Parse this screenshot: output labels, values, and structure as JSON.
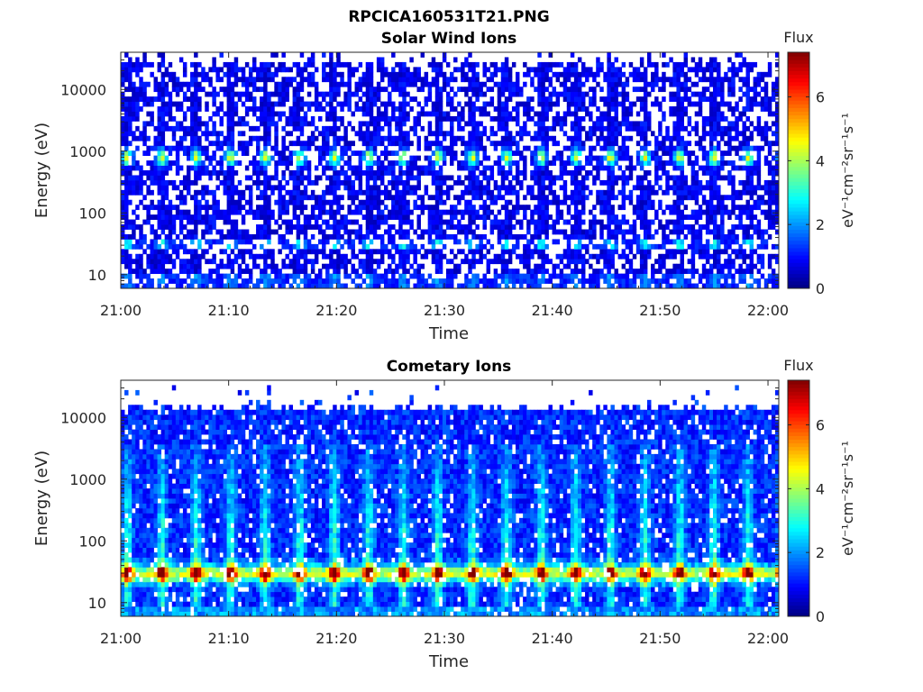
{
  "figure": {
    "filename_title": "RPCICA160531T21.PNG"
  },
  "chart_data": [
    {
      "type": "heatmap",
      "title": "Solar Wind Ions",
      "xlabel": "Time",
      "ylabel": "Energy (eV)",
      "x_ticks": [
        "21:00",
        "21:10",
        "21:20",
        "21:30",
        "21:40",
        "21:50",
        "22:00"
      ],
      "xlim": [
        "21:00",
        "22:01"
      ],
      "y_scale": "log",
      "y_ticks": [
        "10",
        "100",
        "1000",
        "10000"
      ],
      "ylim": [
        6,
        40000
      ],
      "colorbar": {
        "title": "Flux",
        "label": "eV⁻¹cm⁻²sr⁻¹s⁻¹",
        "ticks": [
          "0",
          "2",
          "4",
          "6"
        ],
        "range": [
          0,
          7.4
        ],
        "colormap": "jet"
      },
      "pattern": {
        "description": "Sparse background across all energies; periodic bright bands near 700-1000 eV and near 30 eV approximately every 3.2 minutes"
      },
      "peak_energy_ev": 800,
      "peak_flux": 3.8,
      "low_band_energy_ev": 30,
      "low_band_flux": 2.9,
      "sweep_period_min": 3.2,
      "sweep_phase_min": 3.0,
      "background_flux": 0.8
    },
    {
      "type": "heatmap",
      "title": "Cometary Ions",
      "xlabel": "Time",
      "ylabel": "Energy (eV)",
      "x_ticks": [
        "21:00",
        "21:10",
        "21:20",
        "21:30",
        "21:40",
        "21:50",
        "22:00"
      ],
      "xlim": [
        "21:00",
        "22:01"
      ],
      "y_scale": "log",
      "y_ticks": [
        "10",
        "100",
        "1000",
        "10000"
      ],
      "ylim": [
        6,
        40000
      ],
      "colorbar": {
        "title": "Flux",
        "label": "eV⁻¹cm⁻²sr⁻¹s⁻¹",
        "ticks": [
          "0",
          "2",
          "4",
          "6"
        ],
        "range": [
          0,
          7.4
        ],
        "colormap": "jet"
      },
      "pattern": {
        "description": "Strong persistent band near 30 eV (flux up to ~6.5) with periodic vertical streaks extending to several keV every ~3.2 minutes"
      },
      "peak_energy_ev": 30,
      "peak_flux": 6.3,
      "streak_top_ev": 3000,
      "sweep_period_min": 3.2,
      "sweep_phase_min": 3.0,
      "background_flux": 1.2
    }
  ]
}
